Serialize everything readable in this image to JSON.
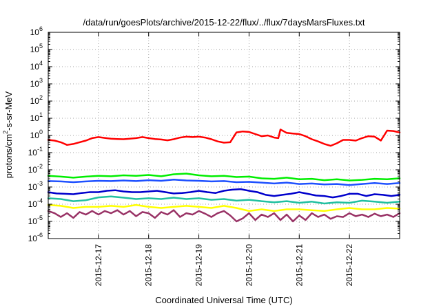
{
  "chart_data": {
    "type": "line",
    "title": "/data/run/goesPlots/archive/2015-12-22/flux/../flux/7daysMarsFluxes.txt",
    "xlabel": "Coordinated Universal Time (UTC)",
    "ylabel": {
      "base": "protons/cm",
      "exponent": "2",
      "suffix": "-s-sr-MeV"
    },
    "y_scale": "log",
    "ylim": [
      1e-06,
      1000000.0
    ],
    "y_ticks": [
      {
        "base": "10",
        "exp": "-6",
        "value": 1e-06
      },
      {
        "base": "10",
        "exp": "-5",
        "value": 1e-05
      },
      {
        "base": "10",
        "exp": "-4",
        "value": 0.0001
      },
      {
        "base": "10",
        "exp": "-3",
        "value": 0.001
      },
      {
        "base": "10",
        "exp": "-2",
        "value": 0.01
      },
      {
        "base": "10",
        "exp": "-1",
        "value": 0.1
      },
      {
        "base": "10",
        "exp": "0",
        "value": 1
      },
      {
        "base": "10",
        "exp": "1",
        "value": 10
      },
      {
        "base": "10",
        "exp": "2",
        "value": 100
      },
      {
        "base": "10",
        "exp": "3",
        "value": 1000
      },
      {
        "base": "10",
        "exp": "4",
        "value": 10000
      },
      {
        "base": "10",
        "exp": "5",
        "value": 100000
      },
      {
        "base": "10",
        "exp": "6",
        "value": 1000000
      }
    ],
    "xlim": [
      "2015-12-16 00:00",
      "2015-12-23 00:00"
    ],
    "x_ticks": [
      "2015-12-17",
      "2015-12-18",
      "2015-12-19",
      "2015-12-20",
      "2015-12-21",
      "2015-12-22"
    ],
    "grid": true,
    "legend": "none",
    "series": [
      {
        "color": "#ff0000",
        "x": [
          "2015-12-16 00:00",
          "2015-12-16 03:00",
          "2015-12-16 06:00",
          "2015-12-16 09:00",
          "2015-12-16 12:00",
          "2015-12-16 15:00",
          "2015-12-16 18:00",
          "2015-12-16 21:00",
          "2015-12-17 00:00",
          "2015-12-17 03:00",
          "2015-12-17 06:00",
          "2015-12-17 09:00",
          "2015-12-17 12:00",
          "2015-12-17 15:00",
          "2015-12-17 18:00",
          "2015-12-17 21:00",
          "2015-12-18 00:00",
          "2015-12-18 03:00",
          "2015-12-18 06:00",
          "2015-12-18 09:00",
          "2015-12-18 12:00",
          "2015-12-18 15:00",
          "2015-12-18 18:00",
          "2015-12-18 21:00",
          "2015-12-19 00:00",
          "2015-12-19 03:00",
          "2015-12-19 06:00",
          "2015-12-19 09:00",
          "2015-12-19 12:00",
          "2015-12-19 15:00",
          "2015-12-19 18:00",
          "2015-12-19 21:00",
          "2015-12-20 00:00",
          "2015-12-20 03:00",
          "2015-12-20 06:00",
          "2015-12-20 09:00",
          "2015-12-20 12:00",
          "2015-12-20 14:00",
          "2015-12-20 15:00",
          "2015-12-20 18:00",
          "2015-12-20 21:00",
          "2015-12-21 00:00",
          "2015-12-21 03:00",
          "2015-12-21 06:00",
          "2015-12-21 09:00",
          "2015-12-21 12:00",
          "2015-12-21 15:00",
          "2015-12-21 18:00",
          "2015-12-21 21:00",
          "2015-12-22 00:00",
          "2015-12-22 03:00",
          "2015-12-22 06:00",
          "2015-12-22 09:00",
          "2015-12-22 12:00",
          "2015-12-22 14:00",
          "2015-12-22 15:00",
          "2015-12-22 18:00",
          "2015-12-22 21:00",
          "2015-12-23 00:00"
        ],
        "values": [
          0.55,
          0.5,
          0.4,
          0.28,
          0.32,
          0.4,
          0.5,
          0.7,
          0.8,
          0.72,
          0.65,
          0.62,
          0.6,
          0.65,
          0.7,
          0.8,
          0.7,
          0.62,
          0.58,
          0.52,
          0.6,
          0.75,
          0.85,
          0.8,
          0.85,
          0.75,
          0.6,
          0.45,
          0.38,
          0.4,
          1.5,
          1.7,
          1.6,
          1.2,
          0.9,
          1.0,
          0.75,
          0.7,
          2.2,
          1.4,
          1.3,
          1.2,
          0.9,
          0.6,
          0.45,
          0.32,
          0.25,
          0.35,
          0.55,
          0.55,
          0.5,
          0.7,
          0.9,
          0.85,
          0.6,
          0.5,
          1.9,
          1.8,
          1.5
        ]
      },
      {
        "color": "#00ee00",
        "x": [
          "2015-12-16 00:00",
          "2015-12-16 06:00",
          "2015-12-16 12:00",
          "2015-12-16 18:00",
          "2015-12-17 00:00",
          "2015-12-17 06:00",
          "2015-12-17 12:00",
          "2015-12-17 18:00",
          "2015-12-18 00:00",
          "2015-12-18 06:00",
          "2015-12-18 12:00",
          "2015-12-18 18:00",
          "2015-12-19 00:00",
          "2015-12-19 06:00",
          "2015-12-19 12:00",
          "2015-12-19 18:00",
          "2015-12-20 00:00",
          "2015-12-20 06:00",
          "2015-12-20 12:00",
          "2015-12-20 18:00",
          "2015-12-21 00:00",
          "2015-12-21 06:00",
          "2015-12-21 12:00",
          "2015-12-21 18:00",
          "2015-12-22 00:00",
          "2015-12-22 06:00",
          "2015-12-22 12:00",
          "2015-12-22 18:00",
          "2015-12-23 00:00"
        ],
        "values": [
          0.0045,
          0.004,
          0.0035,
          0.004,
          0.0045,
          0.0042,
          0.0048,
          0.0045,
          0.005,
          0.0042,
          0.0055,
          0.006,
          0.0048,
          0.0042,
          0.0045,
          0.0038,
          0.004,
          0.0032,
          0.003,
          0.0035,
          0.0028,
          0.003,
          0.0025,
          0.0028,
          0.0024,
          0.0026,
          0.003,
          0.0028,
          0.0032
        ]
      },
      {
        "color": "#1e50ff",
        "x": [
          "2015-12-16 00:00",
          "2015-12-16 06:00",
          "2015-12-16 12:00",
          "2015-12-16 18:00",
          "2015-12-17 00:00",
          "2015-12-17 06:00",
          "2015-12-17 12:00",
          "2015-12-17 18:00",
          "2015-12-18 00:00",
          "2015-12-18 06:00",
          "2015-12-18 12:00",
          "2015-12-18 18:00",
          "2015-12-19 00:00",
          "2015-12-19 06:00",
          "2015-12-19 12:00",
          "2015-12-19 18:00",
          "2015-12-20 00:00",
          "2015-12-20 06:00",
          "2015-12-20 12:00",
          "2015-12-20 18:00",
          "2015-12-21 00:00",
          "2015-12-21 06:00",
          "2015-12-21 12:00",
          "2015-12-21 18:00",
          "2015-12-22 00:00",
          "2015-12-22 06:00",
          "2015-12-22 12:00",
          "2015-12-22 18:00",
          "2015-12-23 00:00"
        ],
        "values": [
          0.0022,
          0.0021,
          0.0019,
          0.0021,
          0.0023,
          0.0022,
          0.0024,
          0.0022,
          0.0025,
          0.0023,
          0.0027,
          0.0024,
          0.0023,
          0.0021,
          0.0022,
          0.0019,
          0.002,
          0.0018,
          0.0016,
          0.0018,
          0.0015,
          0.0016,
          0.0014,
          0.0015,
          0.0013,
          0.0015,
          0.0017,
          0.0015,
          0.0017
        ]
      },
      {
        "color": "#0000cc",
        "x": [
          "2015-12-16 00:00",
          "2015-12-16 04:00",
          "2015-12-16 08:00",
          "2015-12-16 12:00",
          "2015-12-16 16:00",
          "2015-12-16 20:00",
          "2015-12-17 00:00",
          "2015-12-17 04:00",
          "2015-12-17 08:00",
          "2015-12-17 12:00",
          "2015-12-17 16:00",
          "2015-12-17 20:00",
          "2015-12-18 00:00",
          "2015-12-18 04:00",
          "2015-12-18 08:00",
          "2015-12-18 12:00",
          "2015-12-18 16:00",
          "2015-12-18 20:00",
          "2015-12-19 00:00",
          "2015-12-19 04:00",
          "2015-12-19 08:00",
          "2015-12-19 12:00",
          "2015-12-19 16:00",
          "2015-12-19 20:00",
          "2015-12-20 00:00",
          "2015-12-20 04:00",
          "2015-12-20 08:00",
          "2015-12-20 12:00",
          "2015-12-20 16:00",
          "2015-12-20 20:00",
          "2015-12-21 00:00",
          "2015-12-21 04:00",
          "2015-12-21 08:00",
          "2015-12-21 12:00",
          "2015-12-21 16:00",
          "2015-12-21 20:00",
          "2015-12-22 00:00",
          "2015-12-22 04:00",
          "2015-12-22 08:00",
          "2015-12-22 12:00",
          "2015-12-22 16:00",
          "2015-12-22 20:00",
          "2015-12-23 00:00"
        ],
        "values": [
          0.0005,
          0.00042,
          0.0004,
          0.00038,
          0.00045,
          0.0005,
          0.0005,
          0.0006,
          0.00065,
          0.00055,
          0.0005,
          0.0005,
          0.00055,
          0.0006,
          0.0005,
          0.00042,
          0.00045,
          0.0005,
          0.0006,
          0.0005,
          0.00045,
          0.0006,
          0.0007,
          0.00075,
          0.0006,
          0.0005,
          0.00035,
          0.0003,
          0.00035,
          0.0004,
          0.0005,
          0.0004,
          0.00032,
          0.0003,
          0.00025,
          0.0003,
          0.0004,
          0.0004,
          0.0003,
          0.00038,
          0.00035,
          0.0003,
          0.00035
        ]
      },
      {
        "color": "#20c0a0",
        "x": [
          "2015-12-16 00:00",
          "2015-12-16 06:00",
          "2015-12-16 12:00",
          "2015-12-16 18:00",
          "2015-12-17 00:00",
          "2015-12-17 06:00",
          "2015-12-17 12:00",
          "2015-12-17 18:00",
          "2015-12-18 00:00",
          "2015-12-18 06:00",
          "2015-12-18 12:00",
          "2015-12-18 18:00",
          "2015-12-19 00:00",
          "2015-12-19 06:00",
          "2015-12-19 12:00",
          "2015-12-19 18:00",
          "2015-12-20 00:00",
          "2015-12-20 06:00",
          "2015-12-20 12:00",
          "2015-12-20 18:00",
          "2015-12-21 00:00",
          "2015-12-21 06:00",
          "2015-12-21 12:00",
          "2015-12-21 18:00",
          "2015-12-22 00:00",
          "2015-12-22 06:00",
          "2015-12-22 12:00",
          "2015-12-22 18:00",
          "2015-12-23 00:00"
        ],
        "values": [
          0.00022,
          0.0002,
          0.00015,
          0.00017,
          0.00025,
          0.00028,
          0.00024,
          0.0002,
          0.00022,
          0.0002,
          0.00024,
          0.0002,
          0.00022,
          0.00018,
          0.0002,
          0.00016,
          0.00018,
          0.00015,
          0.00013,
          0.00015,
          0.00012,
          0.00014,
          0.00011,
          0.00013,
          0.00012,
          0.00016,
          0.00014,
          0.00012,
          0.00014
        ]
      },
      {
        "color": "#ffff00",
        "x": [
          "2015-12-16 00:00",
          "2015-12-16 06:00",
          "2015-12-16 12:00",
          "2015-12-16 18:00",
          "2015-12-17 00:00",
          "2015-12-17 06:00",
          "2015-12-17 12:00",
          "2015-12-17 18:00",
          "2015-12-18 00:00",
          "2015-12-18 06:00",
          "2015-12-18 12:00",
          "2015-12-18 18:00",
          "2015-12-19 00:00",
          "2015-12-19 06:00",
          "2015-12-19 12:00",
          "2015-12-19 18:00",
          "2015-12-20 00:00",
          "2015-12-20 06:00",
          "2015-12-20 12:00",
          "2015-12-20 18:00",
          "2015-12-21 00:00",
          "2015-12-21 06:00",
          "2015-12-21 12:00",
          "2015-12-21 18:00",
          "2015-12-22 00:00",
          "2015-12-22 06:00",
          "2015-12-22 12:00",
          "2015-12-22 18:00",
          "2015-12-23 00:00"
        ],
        "values": [
          9e-05,
          8e-05,
          6e-05,
          7e-05,
          7e-05,
          8e-05,
          7e-05,
          9e-05,
          7e-05,
          6e-05,
          7e-05,
          8e-05,
          7e-05,
          6e-05,
          8e-05,
          6e-05,
          4e-05,
          5e-05,
          4e-05,
          5e-05,
          5e-05,
          4.5e-05,
          4e-05,
          5e-05,
          6e-05,
          5e-05,
          5e-05,
          6e-05,
          5.5e-05
        ]
      },
      {
        "color": "#993366",
        "x": [
          "2015-12-16 00:00",
          "2015-12-16 03:00",
          "2015-12-16 06:00",
          "2015-12-16 09:00",
          "2015-12-16 12:00",
          "2015-12-16 15:00",
          "2015-12-16 18:00",
          "2015-12-16 21:00",
          "2015-12-17 00:00",
          "2015-12-17 03:00",
          "2015-12-17 06:00",
          "2015-12-17 09:00",
          "2015-12-17 12:00",
          "2015-12-17 15:00",
          "2015-12-17 18:00",
          "2015-12-17 21:00",
          "2015-12-18 00:00",
          "2015-12-18 03:00",
          "2015-12-18 06:00",
          "2015-12-18 09:00",
          "2015-12-18 12:00",
          "2015-12-18 15:00",
          "2015-12-18 18:00",
          "2015-12-18 21:00",
          "2015-12-19 00:00",
          "2015-12-19 03:00",
          "2015-12-19 06:00",
          "2015-12-19 09:00",
          "2015-12-19 12:00",
          "2015-12-19 15:00",
          "2015-12-19 18:00",
          "2015-12-19 21:00",
          "2015-12-20 00:00",
          "2015-12-20 03:00",
          "2015-12-20 06:00",
          "2015-12-20 09:00",
          "2015-12-20 12:00",
          "2015-12-20 15:00",
          "2015-12-20 18:00",
          "2015-12-20 21:00",
          "2015-12-21 00:00",
          "2015-12-21 03:00",
          "2015-12-21 06:00",
          "2015-12-21 09:00",
          "2015-12-21 12:00",
          "2015-12-21 15:00",
          "2015-12-21 18:00",
          "2015-12-21 21:00",
          "2015-12-22 00:00",
          "2015-12-22 03:00",
          "2015-12-22 06:00",
          "2015-12-22 09:00",
          "2015-12-22 12:00",
          "2015-12-22 15:00",
          "2015-12-22 18:00",
          "2015-12-22 21:00",
          "2015-12-23 00:00"
        ],
        "values": [
          4e-05,
          3e-05,
          1.8e-05,
          3e-05,
          1.6e-05,
          3.5e-05,
          2.5e-05,
          4e-05,
          2.5e-05,
          4e-05,
          3e-05,
          4.5e-05,
          2.5e-05,
          4e-05,
          2e-05,
          3.5e-05,
          3e-05,
          1.6e-05,
          3.5e-05,
          2.5e-05,
          4.5e-05,
          1.8e-05,
          3e-05,
          2.5e-05,
          4e-05,
          2.8e-05,
          1.8e-05,
          3e-05,
          4e-05,
          2.2e-05,
          1e-05,
          1.5e-05,
          3e-05,
          1.2e-05,
          2.5e-05,
          1.8e-05,
          3e-05,
          1.2e-05,
          2.5e-05,
          1e-05,
          2.2e-05,
          1.2e-05,
          3e-05,
          1.8e-05,
          2.5e-05,
          1.4e-05,
          2e-05,
          1.8e-05,
          3e-05,
          2e-05,
          2.5e-05,
          1.8e-05,
          2.8e-05,
          2e-05,
          2.5e-05,
          1.8e-05,
          3e-05
        ]
      }
    ]
  }
}
